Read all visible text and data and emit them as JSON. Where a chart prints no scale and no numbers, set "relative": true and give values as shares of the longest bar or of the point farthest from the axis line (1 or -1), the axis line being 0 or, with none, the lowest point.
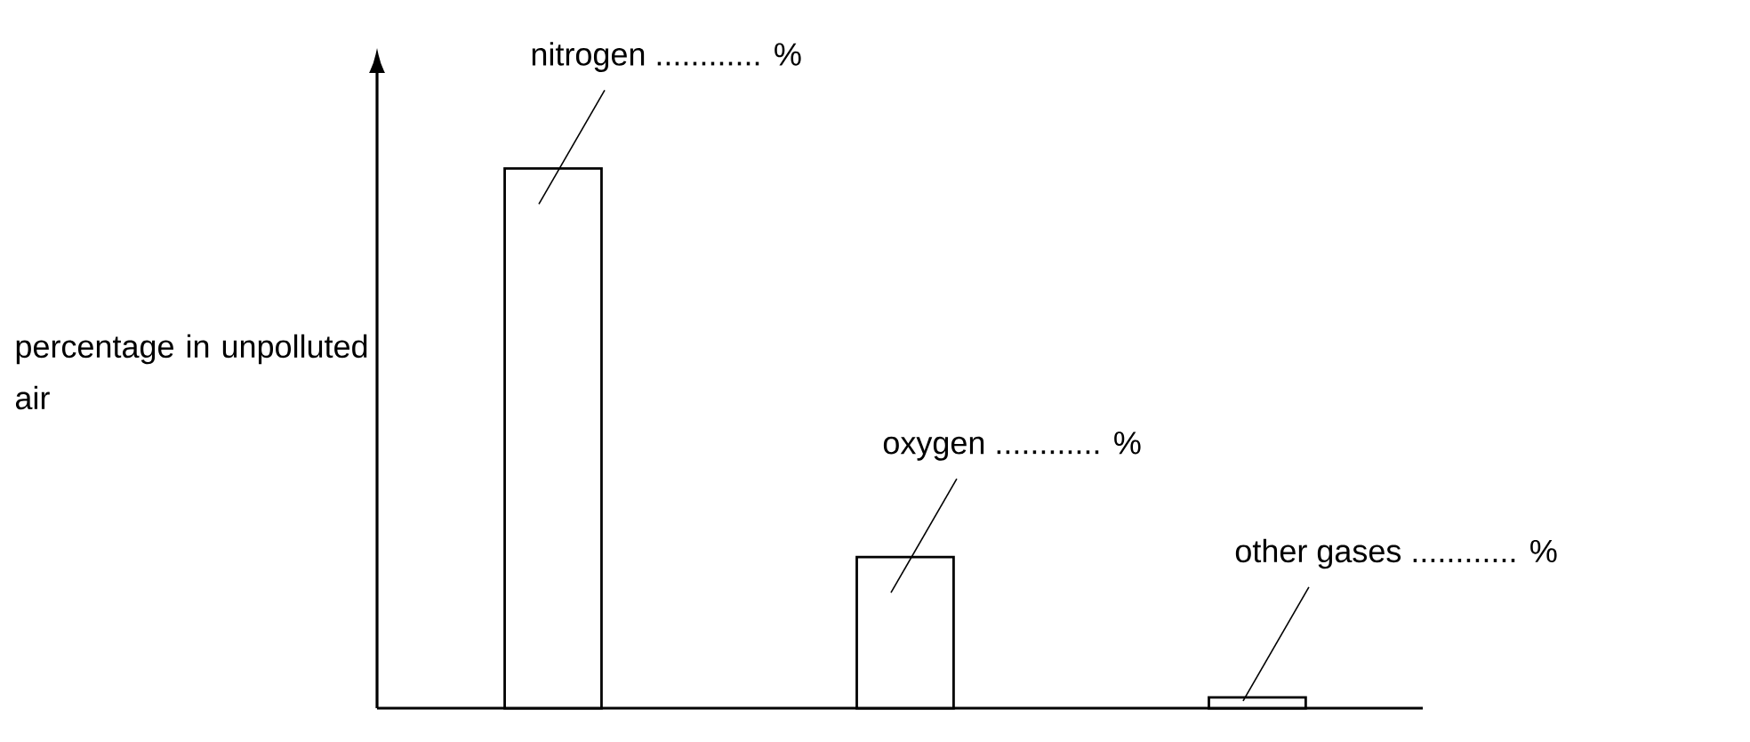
{
  "chart_data": {
    "type": "bar",
    "relative": true,
    "categories": [
      null,
      null,
      null
    ],
    "values": [
      1,
      0.28,
      0.02
    ],
    "color": "#ffffff",
    "ylabel": "percentage in unpolluted air",
    "annotations": [
      "nitrogen ............ %",
      "oxygen ............ %",
      "other gases ............ %"
    ]
  }
}
